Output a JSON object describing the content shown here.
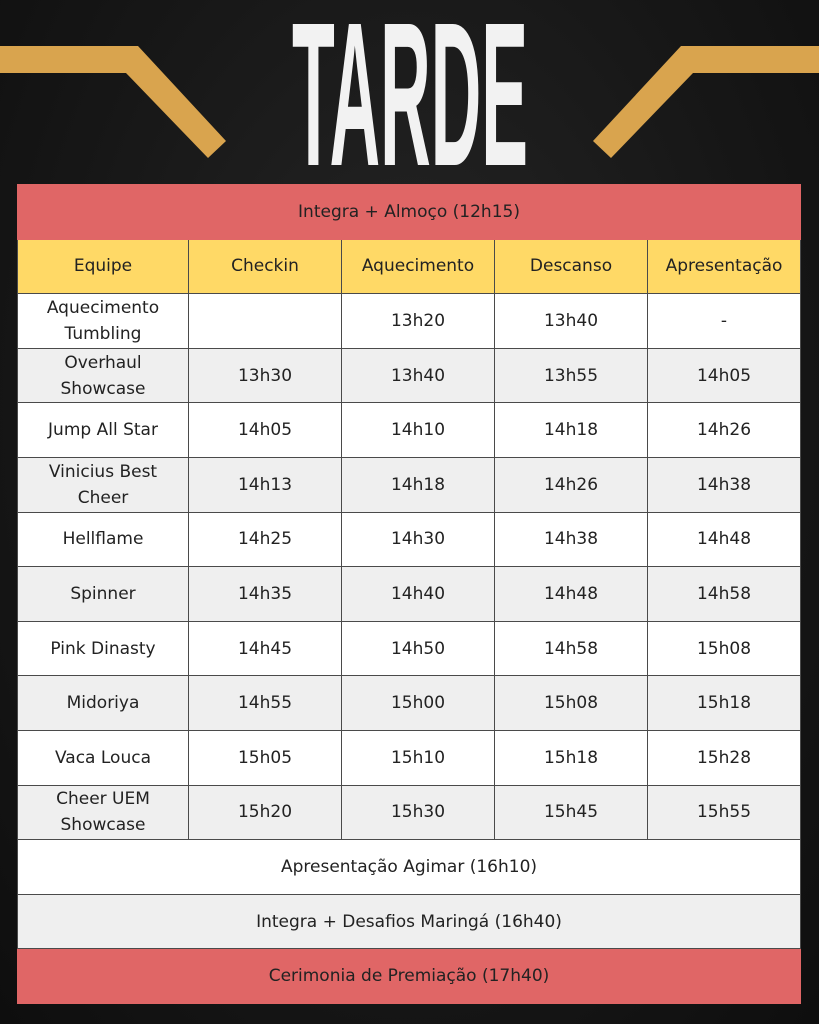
{
  "title": "TARDE",
  "colors": {
    "background": "#141414",
    "accent_gold": "#d9a44e",
    "banner_red": "#e06666",
    "header_yellow": "#ffd966",
    "row_white": "#ffffff",
    "row_gray": "#efefef"
  },
  "top_banner": "Integra + Almoço (12h15)",
  "columns": [
    "Equipe",
    "Checkin",
    "Aquecimento",
    "Descanso",
    "Apresentação"
  ],
  "rows": [
    [
      "Aquecimento Tumbling",
      "",
      "13h20",
      "13h40",
      "-"
    ],
    [
      "Overhaul Showcase",
      "13h30",
      "13h40",
      "13h55",
      "14h05"
    ],
    [
      "Jump All Star",
      "14h05",
      "14h10",
      "14h18",
      "14h26"
    ],
    [
      "Vinicius Best Cheer",
      "14h13",
      "14h18",
      "14h26",
      "14h38"
    ],
    [
      "Hellflame",
      "14h25",
      "14h30",
      "14h38",
      "14h48"
    ],
    [
      "Spinner",
      "14h35",
      "14h40",
      "14h48",
      "14h58"
    ],
    [
      "Pink Dinasty",
      "14h45",
      "14h50",
      "14h58",
      "15h08"
    ],
    [
      "Midoriya",
      "14h55",
      "15h00",
      "15h08",
      "15h18"
    ],
    [
      "Vaca Louca",
      "15h05",
      "15h10",
      "15h18",
      "15h28"
    ],
    [
      "Cheer UEM Showcase",
      "15h20",
      "15h30",
      "15h45",
      "15h55"
    ]
  ],
  "footer_rows": [
    "Apresentação Agimar (16h10)",
    "Integra + Desafios Maringá (16h40)",
    "Cerimonia de Premiação (17h40)"
  ]
}
